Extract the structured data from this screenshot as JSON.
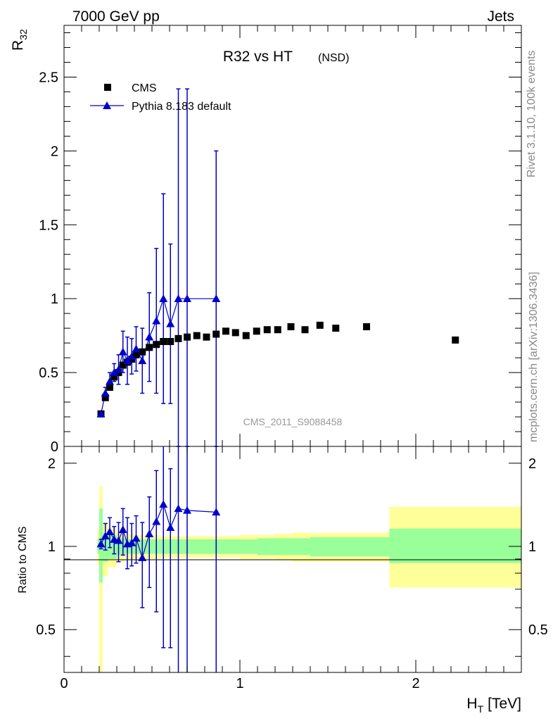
{
  "header": {
    "left": "7000 GeV pp",
    "right": "Jets"
  },
  "side_text": {
    "rivet": "Rivet 3.1.10,  100k events",
    "mcplots": "mcplots.cern.ch [arXiv:1306.3436]"
  },
  "colors": {
    "mc": "#0000cc",
    "data": "#000000",
    "band_inner": "#99ff99",
    "band_outer": "#ffff99",
    "watermark": "#999999"
  },
  "chart_data": [
    {
      "type": "scatter",
      "title": "R32 vs HT",
      "title_suffix": "(NSD)",
      "ylabel": "R",
      "ylabel_sub": "32",
      "xlim": [
        0,
        2.6
      ],
      "ylim": [
        0,
        2.85
      ],
      "yticks": [
        "0",
        "0.5",
        "1",
        "1.5",
        "2",
        "2.5"
      ],
      "watermark": "CMS_2011_S9088458",
      "legend": {
        "placement": "top-left",
        "entries": [
          "CMS",
          "Pythia 8.183 default"
        ]
      },
      "series": [
        {
          "name": "CMS",
          "marker": "square",
          "x": [
            0.21,
            0.235,
            0.26,
            0.285,
            0.31,
            0.335,
            0.36,
            0.385,
            0.41,
            0.445,
            0.485,
            0.525,
            0.565,
            0.605,
            0.65,
            0.7,
            0.755,
            0.81,
            0.865,
            0.92,
            0.975,
            1.035,
            1.095,
            1.155,
            1.215,
            1.29,
            1.37,
            1.455,
            1.545,
            1.72,
            2.225
          ],
          "y": [
            0.22,
            0.33,
            0.4,
            0.47,
            0.5,
            0.55,
            0.57,
            0.59,
            0.62,
            0.64,
            0.67,
            0.69,
            0.71,
            0.71,
            0.73,
            0.74,
            0.75,
            0.74,
            0.76,
            0.78,
            0.77,
            0.75,
            0.78,
            0.79,
            0.79,
            0.81,
            0.79,
            0.82,
            0.8,
            0.81,
            0.72
          ]
        },
        {
          "name": "Pythia 8.183 default",
          "marker": "triangle",
          "x": [
            0.21,
            0.235,
            0.26,
            0.285,
            0.31,
            0.335,
            0.36,
            0.385,
            0.41,
            0.445,
            0.485,
            0.525,
            0.565,
            0.605,
            0.65,
            0.7,
            0.865
          ],
          "y": [
            0.22,
            0.36,
            0.44,
            0.5,
            0.52,
            0.64,
            0.58,
            0.61,
            0.66,
            0.58,
            0.74,
            0.85,
            1.0,
            0.83,
            1.0,
            1.0,
            1.0
          ],
          "yerr": [
            0.01,
            0.04,
            0.06,
            0.06,
            0.1,
            0.14,
            0.16,
            0.12,
            0.15,
            0.22,
            0.3,
            0.49,
            0.71,
            0.54,
            1.42,
            1.42,
            1.0
          ]
        }
      ]
    },
    {
      "type": "scatter",
      "ylabel": "Ratio to CMS",
      "xlabel": "H",
      "xlabel_sub": "T",
      "xlabel_unit": "[TeV]",
      "xlim": [
        0,
        2.6
      ],
      "ylim": [
        0.35,
        2.3
      ],
      "ylog": true,
      "xticks": [
        "0",
        "1",
        "2"
      ],
      "yticks": [
        "0.5",
        "1",
        "2"
      ],
      "reference_line": 1,
      "uncertainty_bands": {
        "bins": [
          [
            0.19,
            0.2
          ],
          [
            0.2,
            0.22
          ],
          [
            0.22,
            0.25
          ],
          [
            0.25,
            0.3
          ],
          [
            0.3,
            0.35
          ],
          [
            0.35,
            0.4
          ],
          [
            0.4,
            0.45
          ],
          [
            0.45,
            0.5
          ],
          [
            0.5,
            0.55
          ],
          [
            0.55,
            0.6
          ],
          [
            0.6,
            0.7
          ],
          [
            0.7,
            0.8
          ],
          [
            0.8,
            0.9
          ],
          [
            0.9,
            1.0
          ],
          [
            1.0,
            1.1
          ],
          [
            1.1,
            1.2
          ],
          [
            1.2,
            1.3
          ],
          [
            1.3,
            1.4
          ],
          [
            1.4,
            1.5
          ],
          [
            1.5,
            1.85
          ],
          [
            1.85,
            2.6
          ]
        ],
        "inner": [
          [
            0.94,
            1.06
          ],
          [
            0.74,
            1.37
          ],
          [
            0.88,
            1.12
          ],
          [
            0.9,
            1.1
          ],
          [
            0.93,
            1.07
          ],
          [
            0.94,
            1.06
          ],
          [
            0.94,
            1.06
          ],
          [
            0.94,
            1.06
          ],
          [
            0.94,
            1.06
          ],
          [
            0.94,
            1.06
          ],
          [
            0.94,
            1.06
          ],
          [
            0.94,
            1.06
          ],
          [
            0.94,
            1.06
          ],
          [
            0.94,
            1.06
          ],
          [
            0.94,
            1.06
          ],
          [
            0.93,
            1.07
          ],
          [
            0.93,
            1.07
          ],
          [
            0.93,
            1.07
          ],
          [
            0.92,
            1.08
          ],
          [
            0.92,
            1.08
          ],
          [
            0.87,
            1.16
          ]
        ],
        "outer": [
          [
            0.85,
            1.15
          ],
          [
            0.35,
            1.65
          ],
          [
            0.78,
            1.22
          ],
          [
            0.84,
            1.16
          ],
          [
            0.88,
            1.12
          ],
          [
            0.89,
            1.11
          ],
          [
            0.9,
            1.1
          ],
          [
            0.9,
            1.1
          ],
          [
            0.9,
            1.1
          ],
          [
            0.91,
            1.09
          ],
          [
            0.91,
            1.09
          ],
          [
            0.91,
            1.09
          ],
          [
            0.91,
            1.09
          ],
          [
            0.91,
            1.09
          ],
          [
            0.9,
            1.1
          ],
          [
            0.9,
            1.1
          ],
          [
            0.89,
            1.11
          ],
          [
            0.88,
            1.12
          ],
          [
            0.88,
            1.12
          ],
          [
            0.88,
            1.12
          ],
          [
            0.71,
            1.39
          ]
        ]
      },
      "series": [
        {
          "name": "Pythia 8.183 default",
          "marker": "triangle",
          "x": [
            0.21,
            0.235,
            0.26,
            0.285,
            0.31,
            0.335,
            0.36,
            0.385,
            0.41,
            0.445,
            0.485,
            0.525,
            0.565,
            0.605,
            0.65,
            0.7,
            0.865
          ],
          "y": [
            1.02,
            1.09,
            1.13,
            1.06,
            1.05,
            1.15,
            1.02,
            1.03,
            1.07,
            0.91,
            1.11,
            1.23,
            1.42,
            1.17,
            1.37,
            1.35,
            1.33
          ],
          "yerr_low": [
            0.04,
            0.12,
            0.14,
            0.12,
            0.17,
            0.22,
            0.19,
            0.18,
            0.2,
            0.31,
            0.4,
            0.65,
            0.99,
            0.74,
            1.5,
            1.5,
            1.5
          ],
          "yerr_high": [
            0.04,
            0.12,
            0.14,
            0.12,
            0.17,
            0.22,
            0.25,
            0.18,
            0.22,
            0.31,
            0.4,
            0.65,
            0.99,
            0.74,
            1.5,
            1.5,
            1.5
          ]
        }
      ]
    }
  ]
}
